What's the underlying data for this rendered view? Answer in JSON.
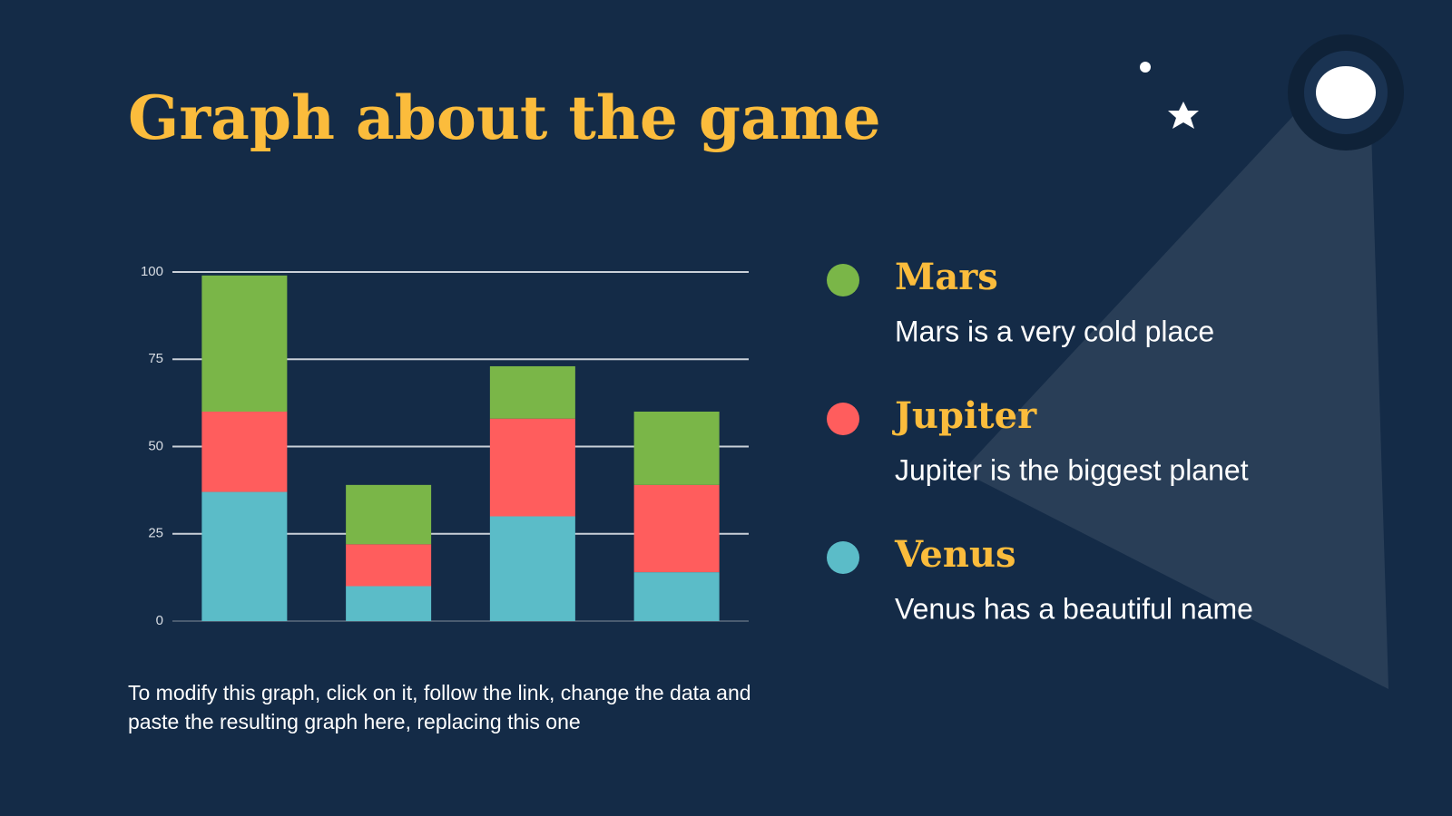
{
  "title": "Graph about the game",
  "chart_data": {
    "type": "bar",
    "stacked": true,
    "categories": [
      null,
      null,
      null,
      null
    ],
    "series": [
      {
        "name": "Mars",
        "description": "Mars is a very cold place",
        "color": "#7ab648",
        "values": [
          39,
          17,
          15,
          21
        ]
      },
      {
        "name": "Jupiter",
        "description": "Jupiter is the biggest planet",
        "color": "#ff5d5d",
        "values": [
          23,
          12,
          28,
          25
        ]
      },
      {
        "name": "Venus",
        "description": "Venus has a beautiful name",
        "color": "#5bbcc8",
        "values": [
          37,
          10,
          30,
          14
        ]
      }
    ],
    "ylim": [
      0,
      100
    ],
    "yticks": [
      0,
      25,
      50,
      75,
      100
    ],
    "grid": true
  },
  "note": "To modify this graph, click on it, follow the link, change the data and paste the resulting graph here, replacing this one"
}
